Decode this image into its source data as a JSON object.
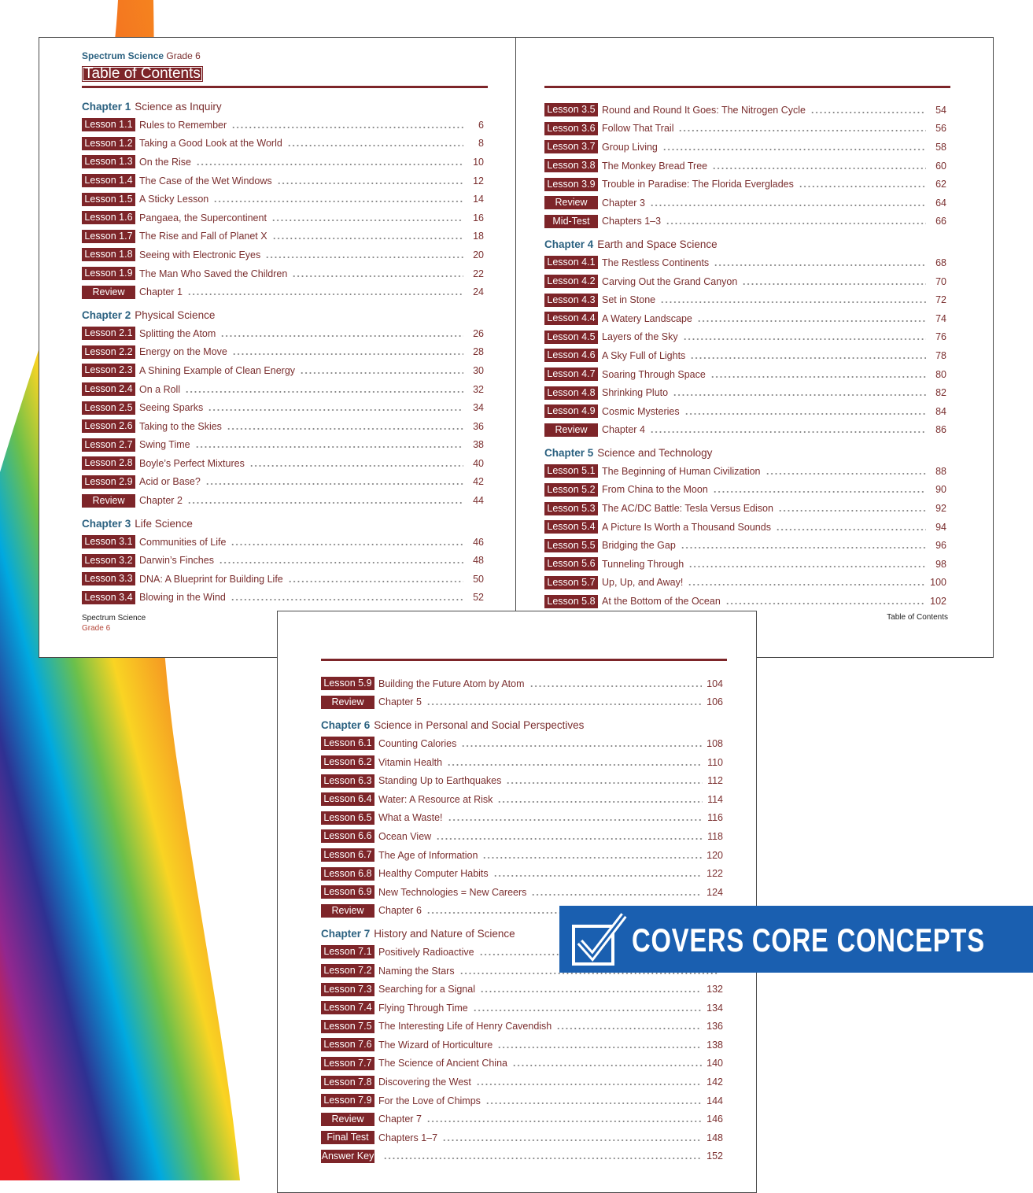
{
  "header": {
    "series": "Spectrum Science",
    "grade": "Grade 6",
    "title": "Table of Contents"
  },
  "footer": {
    "series": "Spectrum Science",
    "grade": "Grade 6",
    "right": "Table of Contents"
  },
  "badge": "COVERS CORE CONCEPTS",
  "pages": [
    {
      "entries": [
        {
          "chapter": "Chapter 1",
          "title": "Science as Inquiry"
        },
        {
          "tag": "Lesson 1.1",
          "title": "Rules to Remember",
          "page": 6
        },
        {
          "tag": "Lesson 1.2",
          "title": "Taking a Good Look at the World",
          "page": 8
        },
        {
          "tag": "Lesson 1.3",
          "title": "On the Rise",
          "page": 10
        },
        {
          "tag": "Lesson 1.4",
          "title": "The Case of the Wet Windows",
          "page": 12
        },
        {
          "tag": "Lesson 1.5",
          "title": "A Sticky Lesson",
          "page": 14
        },
        {
          "tag": "Lesson 1.6",
          "title": "Pangaea, the Supercontinent",
          "page": 16
        },
        {
          "tag": "Lesson 1.7",
          "title": "The Rise and Fall of Planet X",
          "page": 18
        },
        {
          "tag": "Lesson 1.8",
          "title": "Seeing with Electronic Eyes",
          "page": 20
        },
        {
          "tag": "Lesson 1.9",
          "title": "The Man Who Saved the Children",
          "page": 22
        },
        {
          "tag": "Review",
          "title": "Chapter 1",
          "page": 24
        },
        {
          "chapter": "Chapter 2",
          "title": "Physical Science"
        },
        {
          "tag": "Lesson 2.1",
          "title": "Splitting the Atom",
          "page": 26
        },
        {
          "tag": "Lesson 2.2",
          "title": "Energy on the Move",
          "page": 28
        },
        {
          "tag": "Lesson 2.3",
          "title": "A Shining Example of Clean Energy",
          "page": 30
        },
        {
          "tag": "Lesson 2.4",
          "title": "On a Roll",
          "page": 32
        },
        {
          "tag": "Lesson 2.5",
          "title": "Seeing Sparks",
          "page": 34
        },
        {
          "tag": "Lesson 2.6",
          "title": "Taking to the Skies",
          "page": 36
        },
        {
          "tag": "Lesson 2.7",
          "title": "Swing Time",
          "page": 38
        },
        {
          "tag": "Lesson 2.8",
          "title": "Boyle’s Perfect Mixtures",
          "page": 40
        },
        {
          "tag": "Lesson 2.9",
          "title": "Acid or Base?",
          "page": 42
        },
        {
          "tag": "Review",
          "title": "Chapter 2",
          "page": 44
        },
        {
          "chapter": "Chapter 3",
          "title": "Life Science"
        },
        {
          "tag": "Lesson 3.1",
          "title": "Communities of Life",
          "page": 46
        },
        {
          "tag": "Lesson 3.2",
          "title": "Darwin’s Finches",
          "page": 48
        },
        {
          "tag": "Lesson 3.3",
          "title": "DNA: A Blueprint for Building Life",
          "page": 50
        },
        {
          "tag": "Lesson 3.4",
          "title": "Blowing in the Wind",
          "page": 52
        }
      ]
    },
    {
      "entries": [
        {
          "tag": "Lesson 3.5",
          "title": "Round and Round It Goes: The Nitrogen Cycle",
          "page": 54
        },
        {
          "tag": "Lesson 3.6",
          "title": "Follow That Trail",
          "page": 56
        },
        {
          "tag": "Lesson 3.7",
          "title": "Group Living",
          "page": 58
        },
        {
          "tag": "Lesson 3.8",
          "title": "The Monkey Bread Tree",
          "page": 60
        },
        {
          "tag": "Lesson 3.9",
          "title": "Trouble in Paradise: The Florida Everglades",
          "page": 62
        },
        {
          "tag": "Review",
          "title": "Chapter 3",
          "page": 64
        },
        {
          "tag": "Mid-Test",
          "title": "Chapters 1–3",
          "page": 66
        },
        {
          "chapter": "Chapter 4",
          "title": "Earth and Space Science"
        },
        {
          "tag": "Lesson 4.1",
          "title": "The Restless Continents",
          "page": 68
        },
        {
          "tag": "Lesson 4.2",
          "title": "Carving Out the Grand Canyon",
          "page": 70
        },
        {
          "tag": "Lesson 4.3",
          "title": "Set in Stone",
          "page": 72
        },
        {
          "tag": "Lesson 4.4",
          "title": "A Watery Landscape",
          "page": 74
        },
        {
          "tag": "Lesson 4.5",
          "title": "Layers of the Sky",
          "page": 76
        },
        {
          "tag": "Lesson 4.6",
          "title": "A Sky Full of Lights",
          "page": 78
        },
        {
          "tag": "Lesson 4.7",
          "title": "Soaring Through Space",
          "page": 80
        },
        {
          "tag": "Lesson 4.8",
          "title": "Shrinking Pluto",
          "page": 82
        },
        {
          "tag": "Lesson 4.9",
          "title": "Cosmic Mysteries",
          "page": 84
        },
        {
          "tag": "Review",
          "title": "Chapter 4",
          "page": 86
        },
        {
          "chapter": "Chapter 5",
          "title": "Science and Technology"
        },
        {
          "tag": "Lesson 5.1",
          "title": "The Beginning of Human Civilization",
          "page": 88
        },
        {
          "tag": "Lesson 5.2",
          "title": "From China to the Moon",
          "page": 90
        },
        {
          "tag": "Lesson 5.3",
          "title": "The AC/DC Battle: Tesla Versus Edison",
          "page": 92
        },
        {
          "tag": "Lesson 5.4",
          "title": "A Picture Is Worth a Thousand Sounds",
          "page": 94
        },
        {
          "tag": "Lesson 5.5",
          "title": "Bridging the Gap",
          "page": 96
        },
        {
          "tag": "Lesson 5.6",
          "title": "Tunneling Through",
          "page": 98
        },
        {
          "tag": "Lesson 5.7",
          "title": "Up, Up, and Away!",
          "page": 100
        },
        {
          "tag": "Lesson 5.8",
          "title": "At the Bottom of the Ocean",
          "page": 102
        }
      ]
    },
    {
      "entries": [
        {
          "tag": "Lesson 5.9",
          "title": "Building the Future Atom by Atom",
          "page": 104
        },
        {
          "tag": "Review",
          "title": "Chapter 5",
          "page": 106
        },
        {
          "chapter": "Chapter 6",
          "title": "Science in Personal and Social Perspectives"
        },
        {
          "tag": "Lesson 6.1",
          "title": "Counting Calories",
          "page": 108
        },
        {
          "tag": "Lesson 6.2",
          "title": "Vitamin Health",
          "page": 110
        },
        {
          "tag": "Lesson 6.3",
          "title": "Standing Up to Earthquakes",
          "page": 112
        },
        {
          "tag": "Lesson 6.4",
          "title": "Water: A Resource at Risk",
          "page": 114
        },
        {
          "tag": "Lesson 6.5",
          "title": "What a Waste!",
          "page": 116
        },
        {
          "tag": "Lesson 6.6",
          "title": "Ocean View",
          "page": 118
        },
        {
          "tag": "Lesson 6.7",
          "title": "The Age of Information",
          "page": 120
        },
        {
          "tag": "Lesson 6.8",
          "title": "Healthy Computer Habits",
          "page": 122
        },
        {
          "tag": "Lesson 6.9",
          "title": "New Technologies = New Careers",
          "page": 124
        },
        {
          "tag": "Review",
          "title": "Chapter 6"
        },
        {
          "chapter": "Chapter 7",
          "title": "History and Nature of Science"
        },
        {
          "tag": "Lesson 7.1",
          "title": "Positively Radioactive"
        },
        {
          "tag": "Lesson 7.2",
          "title": "Naming the Stars"
        },
        {
          "tag": "Lesson 7.3",
          "title": "Searching for a Signal",
          "page": 132
        },
        {
          "tag": "Lesson 7.4",
          "title": "Flying Through Time",
          "page": 134
        },
        {
          "tag": "Lesson 7.5",
          "title": "The Interesting Life of Henry Cavendish",
          "page": 136
        },
        {
          "tag": "Lesson 7.6",
          "title": "The Wizard of Horticulture",
          "page": 138
        },
        {
          "tag": "Lesson 7.7",
          "title": "The Science of Ancient China",
          "page": 140
        },
        {
          "tag": "Lesson 7.8",
          "title": "Discovering the West",
          "page": 142
        },
        {
          "tag": "Lesson 7.9",
          "title": "For the Love of Chimps",
          "page": 144
        },
        {
          "tag": "Review",
          "title": "Chapter 7",
          "page": 146
        },
        {
          "tag": "Final Test",
          "title": "Chapters 1–7",
          "page": 148
        },
        {
          "tag": "Answer Key",
          "page": 152
        }
      ]
    }
  ]
}
